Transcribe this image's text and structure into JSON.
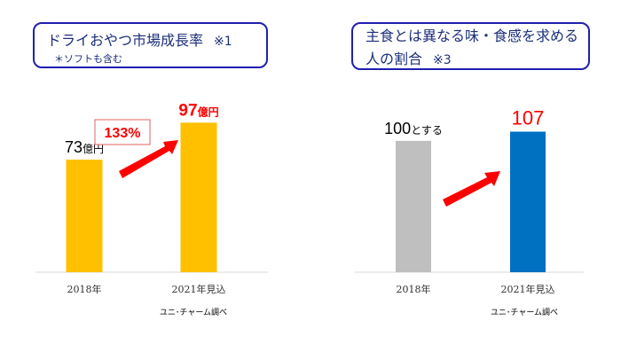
{
  "left_panel": {
    "title": "ドライおやつ市場成長率",
    "title_note": "※1",
    "subtitle": "＊ソフトも含む",
    "growth_label": "133%",
    "source": "ユニ･チャーム調べ"
  },
  "right_panel": {
    "title_line1": "主食とは異なる味・食感を求める",
    "title_line2": "人の割合",
    "title_note": "※3",
    "source": "ユニ･チャーム調べ"
  },
  "colors": {
    "bar_gold": "#FFC000",
    "bar_gray": "#BFBFBF",
    "bar_blue": "#0070C0",
    "arrow_red": "#FF0000",
    "title_blue": "#1c2f7a",
    "box_border": "#2020b0"
  },
  "chart_data": [
    {
      "type": "bar",
      "title": "ドライおやつ市場成長率",
      "categories": [
        "2018年",
        "2021年見込"
      ],
      "values": [
        73,
        97
      ],
      "value_labels": [
        {
          "number": "73",
          "unit": "億円"
        },
        {
          "number": "97",
          "unit": "億円"
        }
      ],
      "bar_colors": [
        "#FFC000",
        "#FFC000"
      ],
      "ylim": [
        0,
        115
      ],
      "annotation": "133%",
      "grid": false,
      "legend": "none"
    },
    {
      "type": "bar",
      "title": "主食とは異なる味・食感を求める人の割合",
      "categories": [
        "2018年",
        "2021年見込"
      ],
      "values": [
        100,
        107
      ],
      "value_labels": [
        {
          "number": "100",
          "unit": "とする"
        },
        {
          "number": "107",
          "unit": ""
        }
      ],
      "bar_colors": [
        "#BFBFBF",
        "#0070C0"
      ],
      "ylim": [
        0,
        135
      ],
      "grid": false,
      "legend": "none"
    }
  ]
}
